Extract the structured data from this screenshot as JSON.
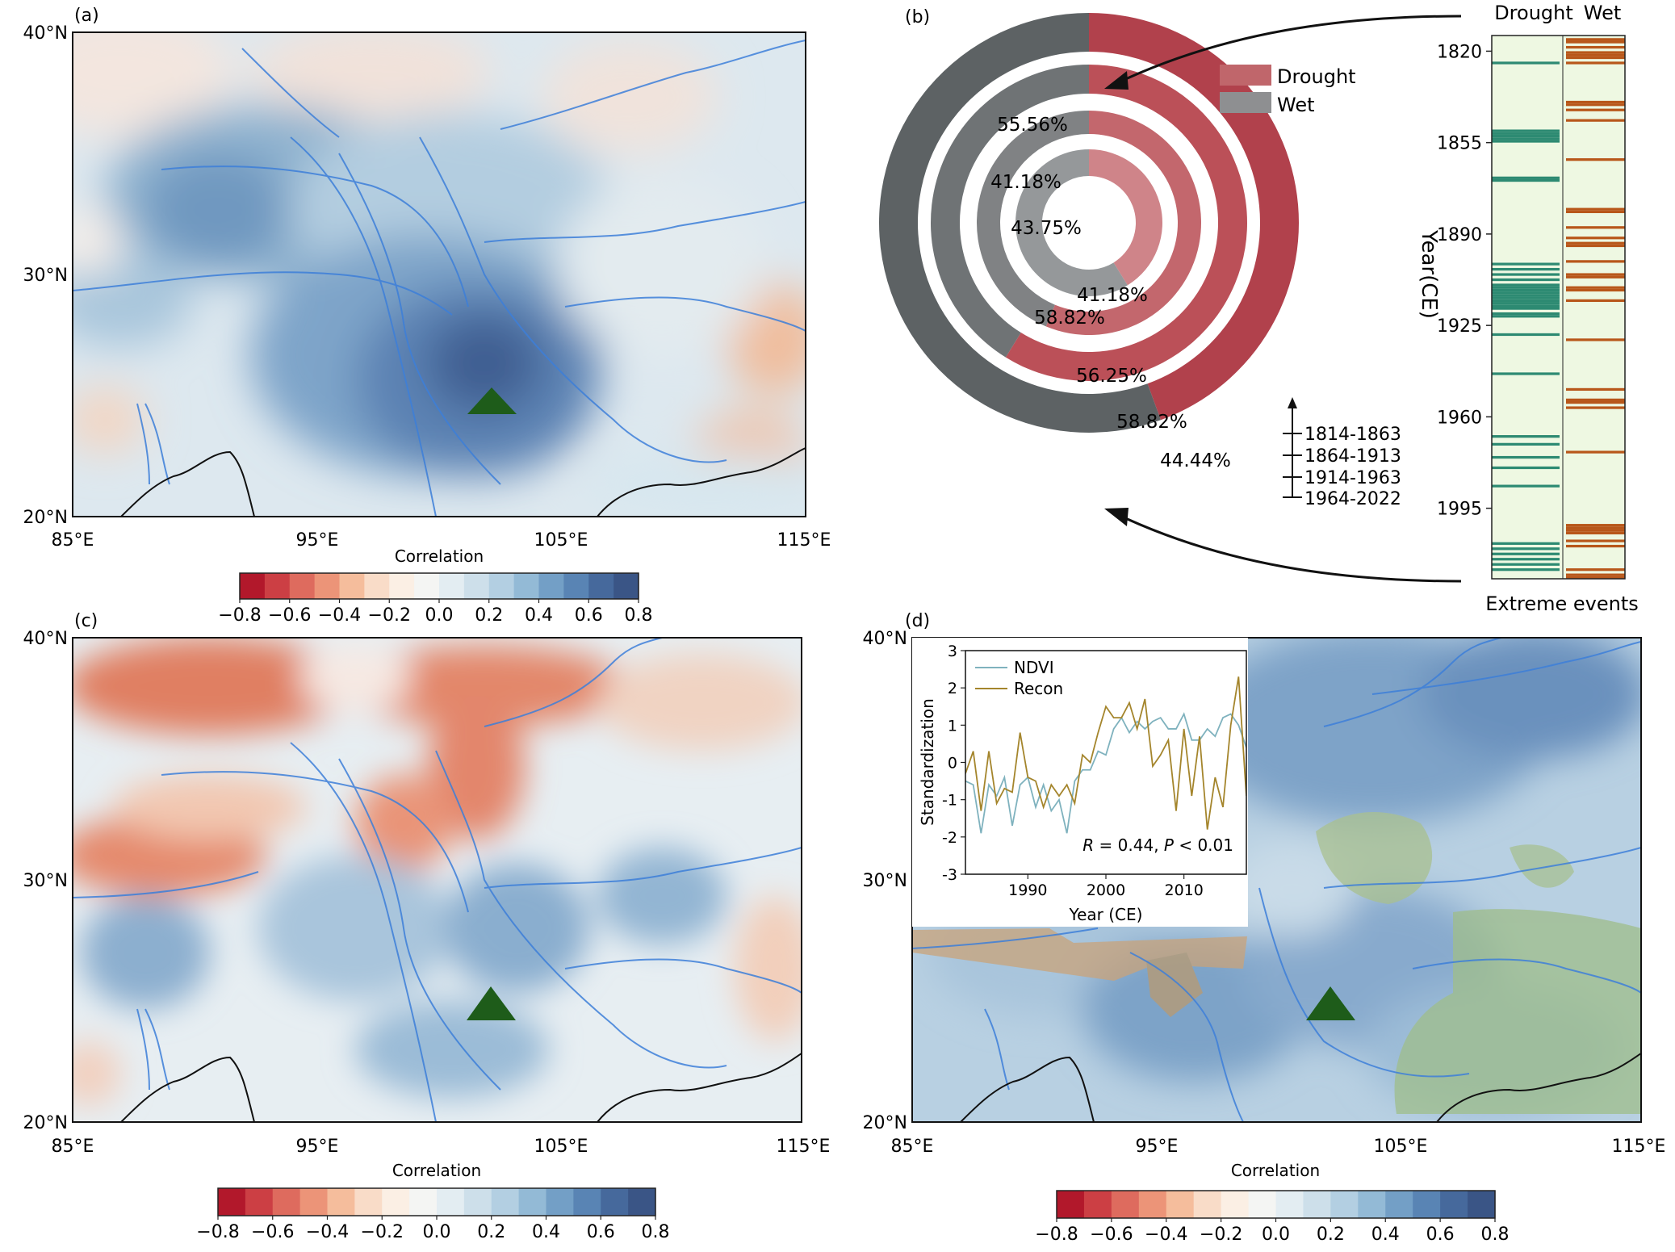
{
  "panels": {
    "a": {
      "label": "(a)"
    },
    "b": {
      "label": "(b)"
    },
    "c": {
      "label": "(c)"
    },
    "d": {
      "label": "(d)"
    }
  },
  "map_axes": {
    "lat_ticks": [
      "40°N",
      "30°N",
      "20°N"
    ],
    "lon_ticks": [
      "85°E",
      "95°E",
      "105°E",
      "115°E"
    ]
  },
  "colorbar": {
    "label": "Correlation",
    "ticks": [
      "−0.8",
      "−0.6",
      "−0.4",
      "−0.2",
      "0.0",
      "0.2",
      "0.4",
      "0.6",
      "0.8"
    ],
    "colors": [
      "#b2182b",
      "#cc3f44",
      "#de6b5e",
      "#ec9478",
      "#f5bd9c",
      "#f9dcc8",
      "#fbefe4",
      "#f4f5f3",
      "#e3edf2",
      "#cddfea",
      "#b3cfe2",
      "#93bad6",
      "#739fc6",
      "#5984b4",
      "#46699c",
      "#3a5586"
    ]
  },
  "site_marker_color": "#1e5c1a",
  "chart_data": [
    {
      "panel": "b",
      "type": "pie",
      "subtype": "nested-donut",
      "legend": [
        {
          "name": "Drought",
          "color": "#c0666b"
        },
        {
          "name": "Wet",
          "color": "#8e8f91"
        }
      ],
      "rings_outer_to_inner": [
        {
          "period": "1964-2022",
          "wet": 55.56,
          "drought": 44.44,
          "wet_label": "55.56%",
          "drought_label": "44.44%",
          "wet_color": "#5d6264",
          "drought_color": "#b1414c"
        },
        {
          "period": "1914-1963",
          "wet": 41.18,
          "drought": 58.82,
          "wet_label": "41.18%",
          "drought_label": "58.82%",
          "wet_color": "#6f7375",
          "drought_color": "#bb5058"
        },
        {
          "period": "1864-1913",
          "wet": 43.75,
          "drought": 56.25,
          "wet_label": "43.75%",
          "drought_label": "56.25%",
          "wet_color": "#808284",
          "drought_color": "#c3676d"
        },
        {
          "period": "1814-1863",
          "wet": 58.82,
          "drought": 41.18,
          "wet_label": "58.82%",
          "drought_label": "41.18%",
          "wet_color": "#95989a",
          "drought_color": "#cf8489"
        }
      ],
      "period_legend": [
        "1814-1863",
        "1864-1913",
        "1914-1963",
        "1964-2022"
      ]
    },
    {
      "panel": "b",
      "type": "heatmap",
      "subtype": "event-timeline",
      "columns": [
        "Drought",
        "Wet"
      ],
      "ylabel": "Year(CE)",
      "xlabel": "Extreme events",
      "ylim": [
        1814,
        2022
      ],
      "yticks": [
        1820,
        1855,
        1890,
        1925,
        1960,
        1995
      ],
      "background": "#eef8e2",
      "drought_color": "#2d8a72",
      "wet_color": "#b8571a",
      "drought_years": [
        1824,
        1850,
        1851,
        1852,
        1853,
        1854,
        1868,
        1869,
        1901,
        1903,
        1905,
        1907,
        1909,
        1910,
        1911,
        1912,
        1913,
        1914,
        1915,
        1916,
        1917,
        1918,
        1920,
        1921,
        1928,
        1943,
        1967,
        1970,
        1975,
        1979,
        1986,
        2008,
        2010,
        2012,
        2014,
        2016,
        2018
      ],
      "wet_years": [
        1815,
        1816,
        1818,
        1820,
        1821,
        1822,
        1824,
        1839,
        1840,
        1842,
        1846,
        1861,
        1880,
        1881,
        1887,
        1891,
        1893,
        1894,
        1900,
        1905,
        1906,
        1910,
        1911,
        1915,
        1930,
        1949,
        1953,
        1954,
        1956,
        1973,
        2001,
        2002,
        2003,
        2004,
        2007,
        2009,
        2018,
        2020,
        2021
      ]
    },
    {
      "panel": "d",
      "type": "line",
      "x": [
        1982,
        1983,
        1984,
        1985,
        1986,
        1987,
        1988,
        1989,
        1990,
        1991,
        1992,
        1993,
        1994,
        1995,
        1996,
        1997,
        1998,
        1999,
        2000,
        2001,
        2002,
        2003,
        2004,
        2005,
        2006,
        2007,
        2008,
        2009,
        2010,
        2011,
        2012,
        2013,
        2014,
        2015,
        2016,
        2017,
        2018
      ],
      "series": [
        {
          "name": "NDVI",
          "color": "#7fb2be",
          "values": [
            -0.5,
            -0.6,
            -1.9,
            -0.6,
            -0.9,
            -0.4,
            -1.7,
            -0.6,
            -0.4,
            -1.2,
            -0.6,
            -1.3,
            -1.0,
            -1.9,
            -0.5,
            -0.2,
            -0.2,
            0.3,
            0.2,
            0.9,
            1.2,
            0.8,
            1.1,
            0.9,
            1.1,
            1.2,
            0.9,
            0.9,
            1.3,
            0.6,
            0.6,
            0.9,
            0.7,
            1.2,
            1.3,
            1.0,
            0.4
          ]
        },
        {
          "name": "Recon",
          "color": "#a4852c",
          "values": [
            -0.3,
            0.3,
            -1.3,
            0.3,
            -1.1,
            -0.7,
            -0.8,
            0.8,
            -0.4,
            -0.5,
            -1.2,
            -0.6,
            -0.9,
            -0.6,
            -1.1,
            0.2,
            0.0,
            0.8,
            1.5,
            1.2,
            1.2,
            1.6,
            0.9,
            1.7,
            -0.1,
            0.2,
            0.6,
            -1.3,
            0.9,
            -0.9,
            0.7,
            -1.8,
            -0.4,
            -1.2,
            1.0,
            2.3,
            -0.9
          ]
        }
      ],
      "xlabel": "Year (CE)",
      "ylabel": "Standardization",
      "xlim": [
        1982,
        2018
      ],
      "ylim": [
        -3,
        3
      ],
      "xticks": [
        1990,
        2000,
        2010
      ],
      "yticks": [
        -3,
        -2,
        -1,
        0,
        1,
        2,
        3
      ],
      "annotation": {
        "r_symbol": "R",
        "r_text": " = 0.44, ",
        "p_symbol": "P",
        "p_text": " < 0.01"
      }
    }
  ]
}
